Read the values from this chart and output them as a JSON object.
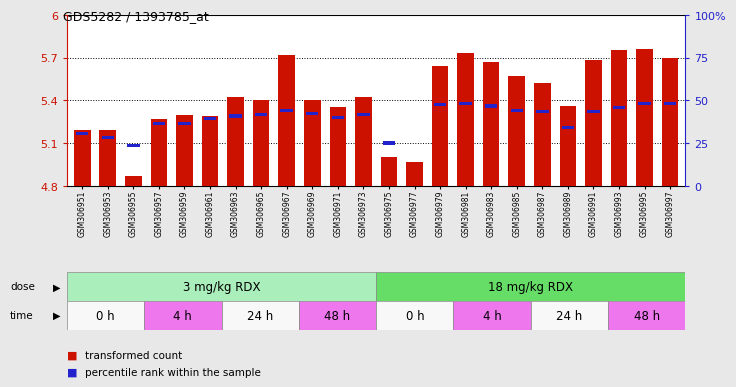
{
  "title": "GDS5282 / 1393785_at",
  "samples": [
    "GSM306951",
    "GSM306953",
    "GSM306955",
    "GSM306957",
    "GSM306959",
    "GSM306961",
    "GSM306963",
    "GSM306965",
    "GSM306967",
    "GSM306969",
    "GSM306971",
    "GSM306973",
    "GSM306975",
    "GSM306977",
    "GSM306979",
    "GSM306981",
    "GSM306983",
    "GSM306985",
    "GSM306987",
    "GSM306989",
    "GSM306991",
    "GSM306993",
    "GSM306995",
    "GSM306997"
  ],
  "bar_values": [
    5.19,
    5.19,
    4.87,
    5.27,
    5.3,
    5.29,
    5.42,
    5.4,
    5.72,
    5.4,
    5.35,
    5.42,
    5.0,
    4.97,
    5.64,
    5.73,
    5.67,
    5.57,
    5.52,
    5.36,
    5.68,
    5.75,
    5.76,
    5.7
  ],
  "blue_marker_values": [
    5.17,
    5.14,
    5.08,
    5.24,
    5.24,
    5.27,
    5.29,
    5.3,
    5.33,
    5.31,
    5.28,
    5.3,
    5.1,
    null,
    5.37,
    5.38,
    5.36,
    5.33,
    5.32,
    5.21,
    5.32,
    5.35,
    5.38,
    5.38
  ],
  "bar_bottom": 4.8,
  "ymin": 4.8,
  "ymax": 6.0,
  "yticks": [
    4.8,
    5.1,
    5.4,
    5.7,
    6.0
  ],
  "ytick_labels": [
    "4.8",
    "5.1",
    "5.4",
    "5.7",
    "6"
  ],
  "right_yticks": [
    0,
    25,
    50,
    75,
    100
  ],
  "right_ytick_labels": [
    "0",
    "25",
    "50",
    "75",
    "100%"
  ],
  "bar_color": "#cc1100",
  "blue_color": "#2222cc",
  "dose_labels": [
    "3 mg/kg RDX",
    "18 mg/kg RDX"
  ],
  "dose_color_3mg": "#aaeebb",
  "dose_color_18mg": "#66dd66",
  "time_segments": [
    {
      "start": 0,
      "end": 3,
      "label": "0 h",
      "color": "#f8f8f8"
    },
    {
      "start": 3,
      "end": 6,
      "label": "4 h",
      "color": "#ee77ee"
    },
    {
      "start": 6,
      "end": 9,
      "label": "24 h",
      "color": "#f8f8f8"
    },
    {
      "start": 9,
      "end": 12,
      "label": "48 h",
      "color": "#ee77ee"
    },
    {
      "start": 12,
      "end": 15,
      "label": "0 h",
      "color": "#f8f8f8"
    },
    {
      "start": 15,
      "end": 18,
      "label": "4 h",
      "color": "#ee77ee"
    },
    {
      "start": 18,
      "end": 21,
      "label": "24 h",
      "color": "#f8f8f8"
    },
    {
      "start": 21,
      "end": 24,
      "label": "48 h",
      "color": "#ee77ee"
    }
  ],
  "legend_red": "transformed count",
  "legend_blue": "percentile rank within the sample",
  "background_color": "#e8e8e8",
  "plot_bg": "#ffffff",
  "xtick_bg": "#d8d8d8"
}
